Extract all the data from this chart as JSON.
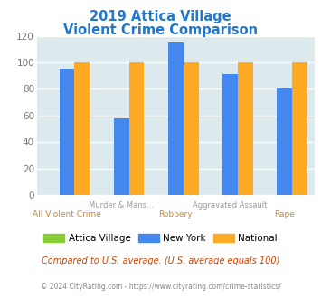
{
  "title_line1": "2019 Attica Village",
  "title_line2": "Violent Crime Comparison",
  "title_color": "#2277cc",
  "x_labels_top": [
    "",
    "Murder & Mans...",
    "",
    "Aggravated Assault",
    ""
  ],
  "x_labels_bottom": [
    "All Violent Crime",
    "",
    "Robbery",
    "",
    "Rape"
  ],
  "series": {
    "Attica Village": [
      0,
      0,
      0,
      0,
      0
    ],
    "New York": [
      95,
      58,
      115,
      91,
      80
    ],
    "National": [
      100,
      100,
      100,
      100,
      100
    ]
  },
  "colors": {
    "Attica Village": "#88cc33",
    "New York": "#4488ee",
    "National": "#ffaa22"
  },
  "ylim": [
    0,
    120
  ],
  "yticks": [
    0,
    20,
    40,
    60,
    80,
    100,
    120
  ],
  "plot_bg_color": "#dce9ed",
  "grid_color": "#ffffff",
  "footer_text": "© 2024 CityRating.com - https://www.cityrating.com/crime-statistics/",
  "comparison_text": "Compared to U.S. average. (U.S. average equals 100)",
  "comparison_color": "#cc4400",
  "footer_color": "#888888",
  "label_top_color": "#999999",
  "label_bottom_color": "#cc8833"
}
